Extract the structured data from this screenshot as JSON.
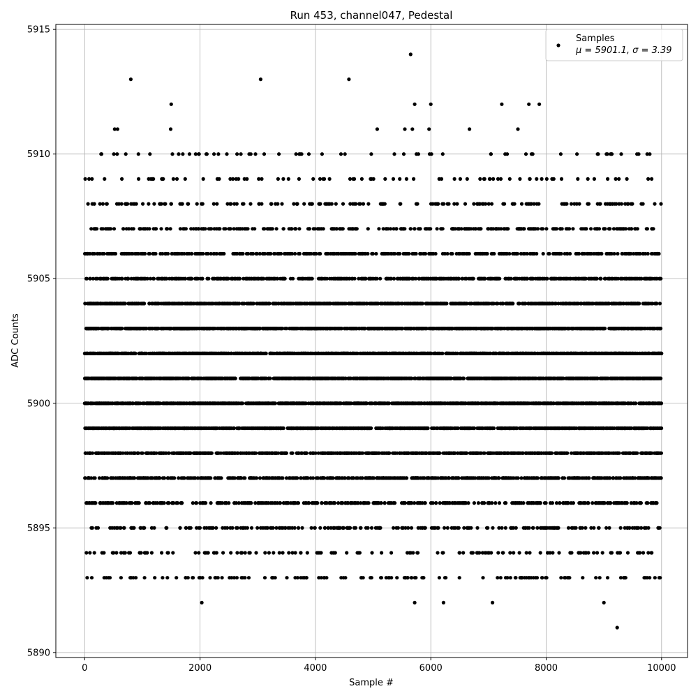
{
  "chart_data": {
    "type": "scatter",
    "title": "Run 453, channel047, Pedestal",
    "xlabel": "Sample #",
    "ylabel": "ADC Counts",
    "xlim": [
      -500,
      10450
    ],
    "ylim": [
      5889.8,
      5915.2
    ],
    "x_ticks": [
      0,
      2000,
      4000,
      6000,
      8000,
      10000
    ],
    "y_ticks": [
      5890,
      5895,
      5900,
      5905,
      5910,
      5915
    ],
    "grid": true,
    "legend": {
      "placement": "top-right",
      "entries": [
        {
          "label": "Samples",
          "stats": "μ = 5901.1, σ = 3.39"
        }
      ]
    },
    "marker_color": "#000000",
    "n_samples": 10000,
    "mean": 5901.1,
    "sigma": 3.39,
    "outliers": [
      {
        "x": 800,
        "y": 5913
      },
      {
        "x": 3050,
        "y": 5913
      },
      {
        "x": 4580,
        "y": 5913
      },
      {
        "x": 5650,
        "y": 5914
      },
      {
        "x": 1500,
        "y": 5912
      },
      {
        "x": 5720,
        "y": 5912
      },
      {
        "x": 6000,
        "y": 5912
      },
      {
        "x": 7230,
        "y": 5912
      },
      {
        "x": 7700,
        "y": 5912
      },
      {
        "x": 7880,
        "y": 5912
      },
      {
        "x": 520,
        "y": 5911
      },
      {
        "x": 570,
        "y": 5911
      },
      {
        "x": 1490,
        "y": 5911
      },
      {
        "x": 5070,
        "y": 5911
      },
      {
        "x": 5550,
        "y": 5911
      },
      {
        "x": 5680,
        "y": 5911
      },
      {
        "x": 5970,
        "y": 5911
      },
      {
        "x": 6670,
        "y": 5911
      },
      {
        "x": 7510,
        "y": 5911
      },
      {
        "x": 2030,
        "y": 5892
      },
      {
        "x": 5720,
        "y": 5892
      },
      {
        "x": 6220,
        "y": 5892
      },
      {
        "x": 7070,
        "y": 5892
      },
      {
        "x": 9000,
        "y": 5892
      },
      {
        "x": 9230,
        "y": 5891
      }
    ]
  }
}
